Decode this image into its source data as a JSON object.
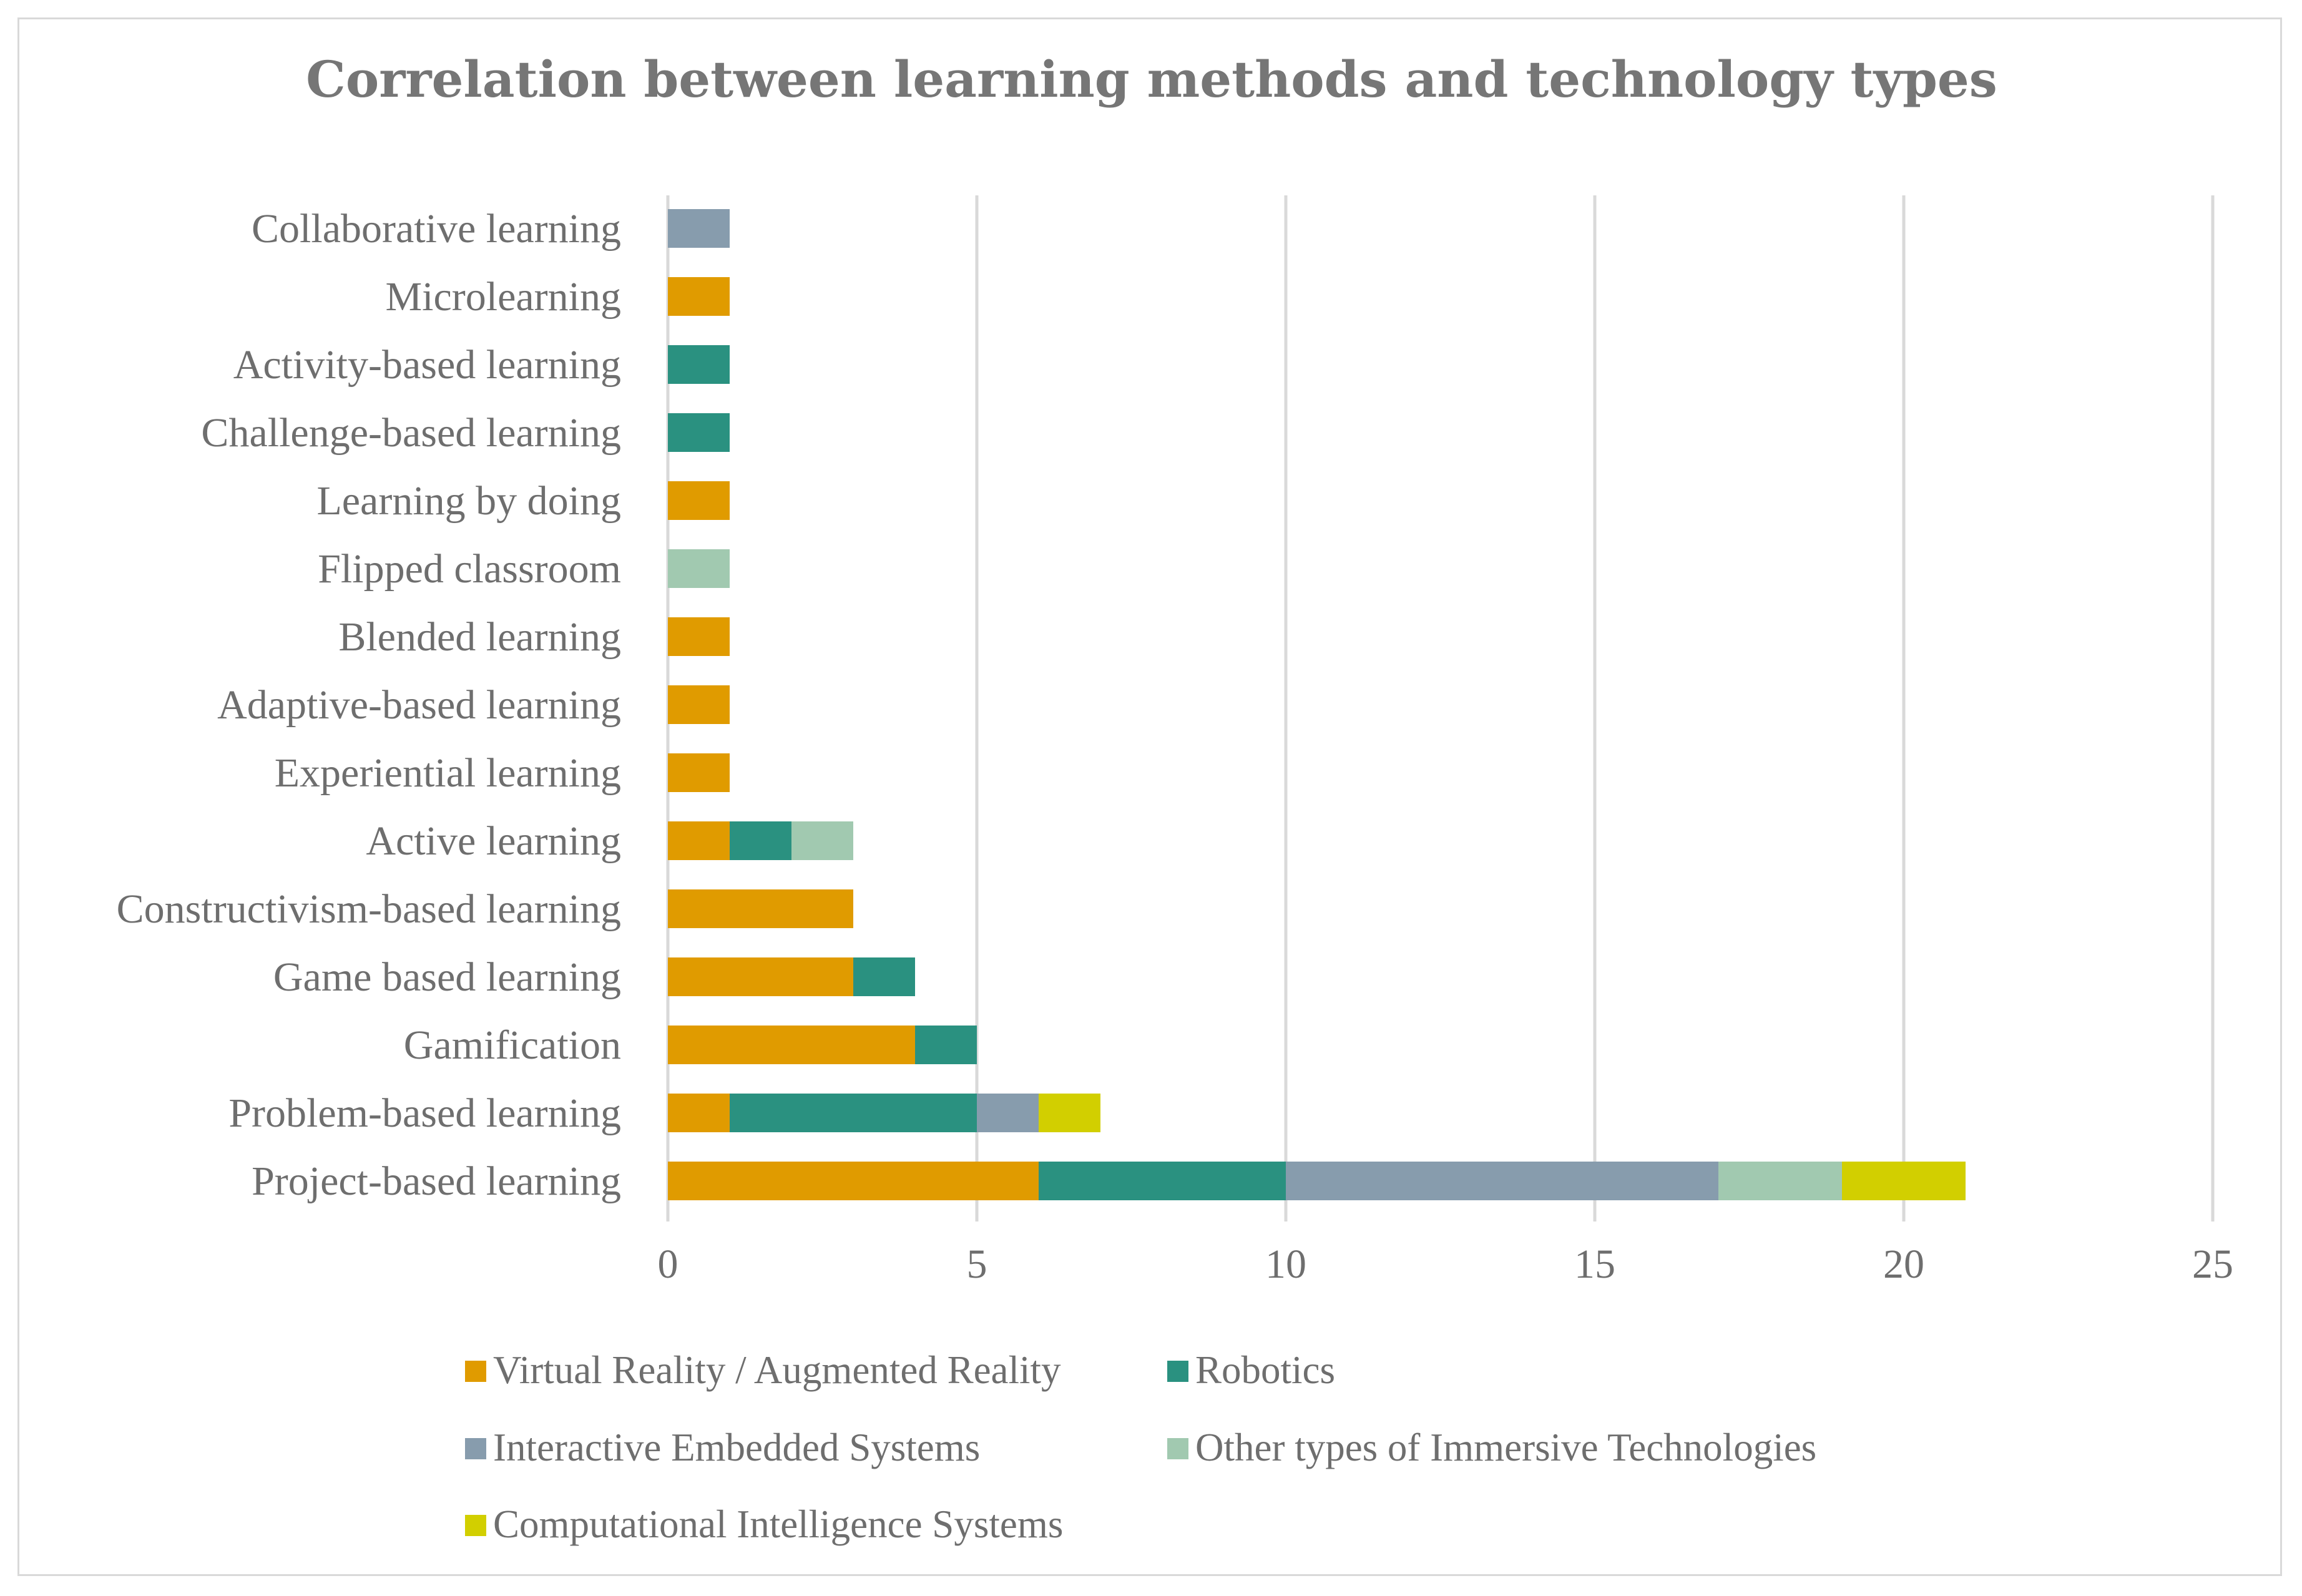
{
  "chart_data": {
    "type": "bar",
    "orientation": "horizontal",
    "stacked": true,
    "title": "Correlation between learning methods and technology types",
    "xlabel": "",
    "ylabel": "",
    "xlim": [
      0,
      25
    ],
    "xticks": [
      0,
      5,
      10,
      15,
      20,
      25
    ],
    "grid": true,
    "legend_position": "bottom",
    "categories": [
      "Project-based learning",
      "Problem-based learning",
      "Gamification",
      "Game based learning",
      "Constructivism-based learning",
      "Active learning",
      "Experiential learning",
      "Adaptive-based learning",
      "Blended learning",
      "Flipped classroom",
      "Learning by doing",
      "Challenge-based  learning",
      "Activity-based learning",
      "Microlearning",
      "Collaborative learning"
    ],
    "series": [
      {
        "name": "Virtual Reality / Augmented Reality",
        "color": "#e09b00",
        "values": [
          6,
          1,
          4,
          3,
          3,
          1,
          1,
          1,
          1,
          0,
          1,
          0,
          0,
          1,
          0
        ]
      },
      {
        "name": "Robotics",
        "color": "#2a9180",
        "values": [
          4,
          4,
          1,
          1,
          0,
          1,
          0,
          0,
          0,
          0,
          0,
          1,
          1,
          0,
          0
        ]
      },
      {
        "name": "Interactive  Embedded  Systems",
        "color": "#879cad",
        "values": [
          7,
          1,
          0,
          0,
          0,
          0,
          0,
          0,
          0,
          0,
          0,
          0,
          0,
          0,
          1
        ]
      },
      {
        "name": "Other types of Immersive Technologies",
        "color": "#a1c9b0",
        "values": [
          2,
          0,
          0,
          0,
          0,
          1,
          0,
          0,
          0,
          1,
          0,
          0,
          0,
          0,
          0
        ]
      },
      {
        "name": "Computational Intelligence Systems",
        "color": "#d2cf00",
        "values": [
          2,
          1,
          0,
          0,
          0,
          0,
          0,
          0,
          0,
          0,
          0,
          0,
          0,
          0,
          0
        ]
      }
    ]
  }
}
